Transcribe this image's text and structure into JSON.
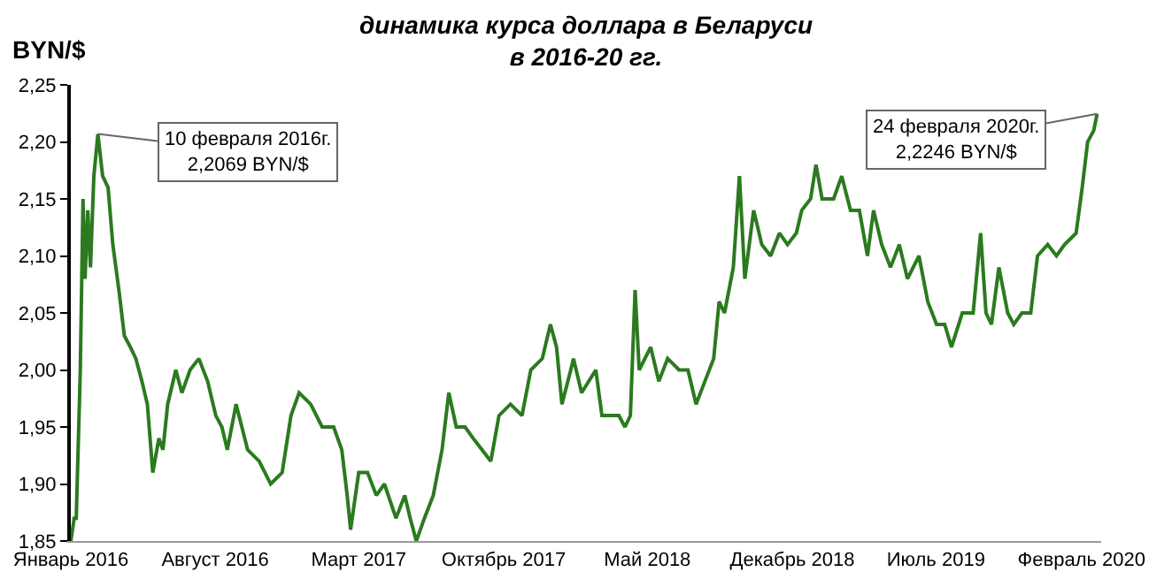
{
  "chart_data": {
    "type": "line",
    "title": "динамика курса доллара в Беларуси\nв 2016-20 гг.",
    "ylabel": "BYN/$",
    "x": [
      "2016-01-01",
      "2016-01-06",
      "2016-01-09",
      "2016-01-15",
      "2016-01-19",
      "2016-01-22",
      "2016-01-26",
      "2016-01-30",
      "2016-02-04",
      "2016-02-10",
      "2016-02-17",
      "2016-02-25",
      "2016-03-03",
      "2016-03-12",
      "2016-03-20",
      "2016-03-29",
      "2016-04-06",
      "2016-04-15",
      "2016-04-23",
      "2016-05-01",
      "2016-05-10",
      "2016-05-16",
      "2016-05-23",
      "2016-06-04",
      "2016-06-13",
      "2016-06-25",
      "2016-07-08",
      "2016-07-21",
      "2016-08-02",
      "2016-08-11",
      "2016-08-19",
      "2016-09-01",
      "2016-09-18",
      "2016-10-05",
      "2016-10-22",
      "2016-11-08",
      "2016-11-21",
      "2016-12-03",
      "2016-12-20",
      "2017-01-06",
      "2017-01-23",
      "2017-02-04",
      "2017-02-12",
      "2017-02-17",
      "2017-03-01",
      "2017-03-14",
      "2017-03-27",
      "2017-04-08",
      "2017-04-25",
      "2017-05-08",
      "2017-05-16",
      "2017-05-25",
      "2017-06-06",
      "2017-06-19",
      "2017-07-02",
      "2017-07-12",
      "2017-07-23",
      "2017-08-05",
      "2017-08-17",
      "2017-08-30",
      "2017-09-12",
      "2017-09-24",
      "2017-10-11",
      "2017-10-28",
      "2017-11-10",
      "2017-11-27",
      "2017-12-09",
      "2017-12-18",
      "2017-12-26",
      "2018-01-08",
      "2018-01-12",
      "2018-01-24",
      "2018-02-14",
      "2018-02-23",
      "2018-03-20",
      "2018-03-29",
      "2018-04-06",
      "2018-04-13",
      "2018-04-19",
      "2018-05-06",
      "2018-05-18",
      "2018-05-31",
      "2018-06-17",
      "2018-06-30",
      "2018-07-12",
      "2018-07-25",
      "2018-08-07",
      "2018-08-15",
      "2018-08-23",
      "2018-09-05",
      "2018-09-14",
      "2018-09-22",
      "2018-10-05",
      "2018-10-17",
      "2018-10-30",
      "2018-11-12",
      "2018-11-24",
      "2018-12-07",
      "2018-12-15",
      "2018-12-28",
      "2019-01-05",
      "2019-01-14",
      "2019-01-31",
      "2019-02-12",
      "2019-02-25",
      "2019-03-10",
      "2019-03-22",
      "2019-03-31",
      "2019-04-12",
      "2019-04-25",
      "2019-05-08",
      "2019-05-20",
      "2019-06-06",
      "2019-06-19",
      "2019-07-02",
      "2019-07-14",
      "2019-07-24",
      "2019-08-09",
      "2019-08-25",
      "2019-09-05",
      "2019-09-13",
      "2019-09-21",
      "2019-10-02",
      "2019-10-15",
      "2019-10-24",
      "2019-11-05",
      "2019-11-18",
      "2019-11-28",
      "2019-12-13",
      "2019-12-26",
      "2020-01-07",
      "2020-01-24",
      "2020-02-02",
      "2020-02-10",
      "2020-02-19",
      "2020-02-24"
    ],
    "series": [
      {
        "color": "#2b7a1f",
        "values": [
          1.85,
          1.87,
          1.87,
          2.0,
          2.15,
          2.08,
          2.14,
          2.09,
          2.17,
          2.2069,
          2.17,
          2.16,
          2.11,
          2.07,
          2.03,
          2.02,
          2.01,
          1.99,
          1.97,
          1.91,
          1.94,
          1.93,
          1.97,
          2.0,
          1.98,
          2.0,
          2.01,
          1.99,
          1.96,
          1.95,
          1.93,
          1.97,
          1.93,
          1.92,
          1.9,
          1.91,
          1.96,
          1.98,
          1.97,
          1.95,
          1.95,
          1.93,
          1.89,
          1.86,
          1.91,
          1.91,
          1.89,
          1.9,
          1.87,
          1.89,
          1.87,
          1.85,
          1.87,
          1.89,
          1.93,
          1.98,
          1.95,
          1.95,
          1.94,
          1.93,
          1.92,
          1.96,
          1.97,
          1.96,
          2.0,
          2.01,
          2.04,
          2.02,
          1.97,
          2.0,
          2.01,
          1.98,
          2.0,
          1.96,
          1.96,
          1.95,
          1.96,
          2.07,
          2.0,
          2.02,
          1.99,
          2.01,
          2.0,
          2.0,
          1.97,
          1.99,
          2.01,
          2.06,
          2.05,
          2.09,
          2.17,
          2.08,
          2.14,
          2.11,
          2.1,
          2.12,
          2.11,
          2.12,
          2.14,
          2.15,
          2.18,
          2.15,
          2.15,
          2.17,
          2.14,
          2.14,
          2.1,
          2.14,
          2.11,
          2.09,
          2.11,
          2.08,
          2.1,
          2.06,
          2.04,
          2.04,
          2.02,
          2.05,
          2.05,
          2.12,
          2.05,
          2.04,
          2.09,
          2.05,
          2.04,
          2.05,
          2.05,
          2.1,
          2.11,
          2.1,
          2.11,
          2.12,
          2.16,
          2.2,
          2.21,
          2.2246
        ]
      }
    ],
    "xlim": [
      "2016-01-01",
      "2020-03-01"
    ],
    "xticks": [
      {
        "value": "2016-01-01",
        "label": "Январь 2016"
      },
      {
        "value": "2016-08-01",
        "label": "Август 2016"
      },
      {
        "value": "2017-03-01",
        "label": "Март 2017"
      },
      {
        "value": "2017-10-01",
        "label": "Октябрь 2017"
      },
      {
        "value": "2018-05-01",
        "label": "Май 2018"
      },
      {
        "value": "2018-12-01",
        "label": "Декабрь 2018"
      },
      {
        "value": "2019-07-01",
        "label": "Июль 2019"
      },
      {
        "value": "2020-02-01",
        "label": "Февраль 2020"
      }
    ],
    "ylim": [
      1.85,
      2.25
    ],
    "yticks": [
      {
        "value": 1.85,
        "label": "1,85"
      },
      {
        "value": 1.9,
        "label": "1,90"
      },
      {
        "value": 1.95,
        "label": "1,95"
      },
      {
        "value": 2.0,
        "label": "2,00"
      },
      {
        "value": 2.05,
        "label": "2,05"
      },
      {
        "value": 2.1,
        "label": "2,10"
      },
      {
        "value": 2.15,
        "label": "2,15"
      },
      {
        "value": 2.2,
        "label": "2,20"
      },
      {
        "value": 2.25,
        "label": "2,25"
      }
    ],
    "annotations": [
      {
        "text": "10 февраля 2016г.\n2,2069 BYN/$",
        "x": "2016-02-10",
        "y": 2.2069
      },
      {
        "text": "24 февраля 2020г.\n2,2246 BYN/$",
        "x": "2020-02-24",
        "y": 2.2246
      }
    ],
    "grid": false,
    "marker": "none",
    "line_style": "solid"
  }
}
